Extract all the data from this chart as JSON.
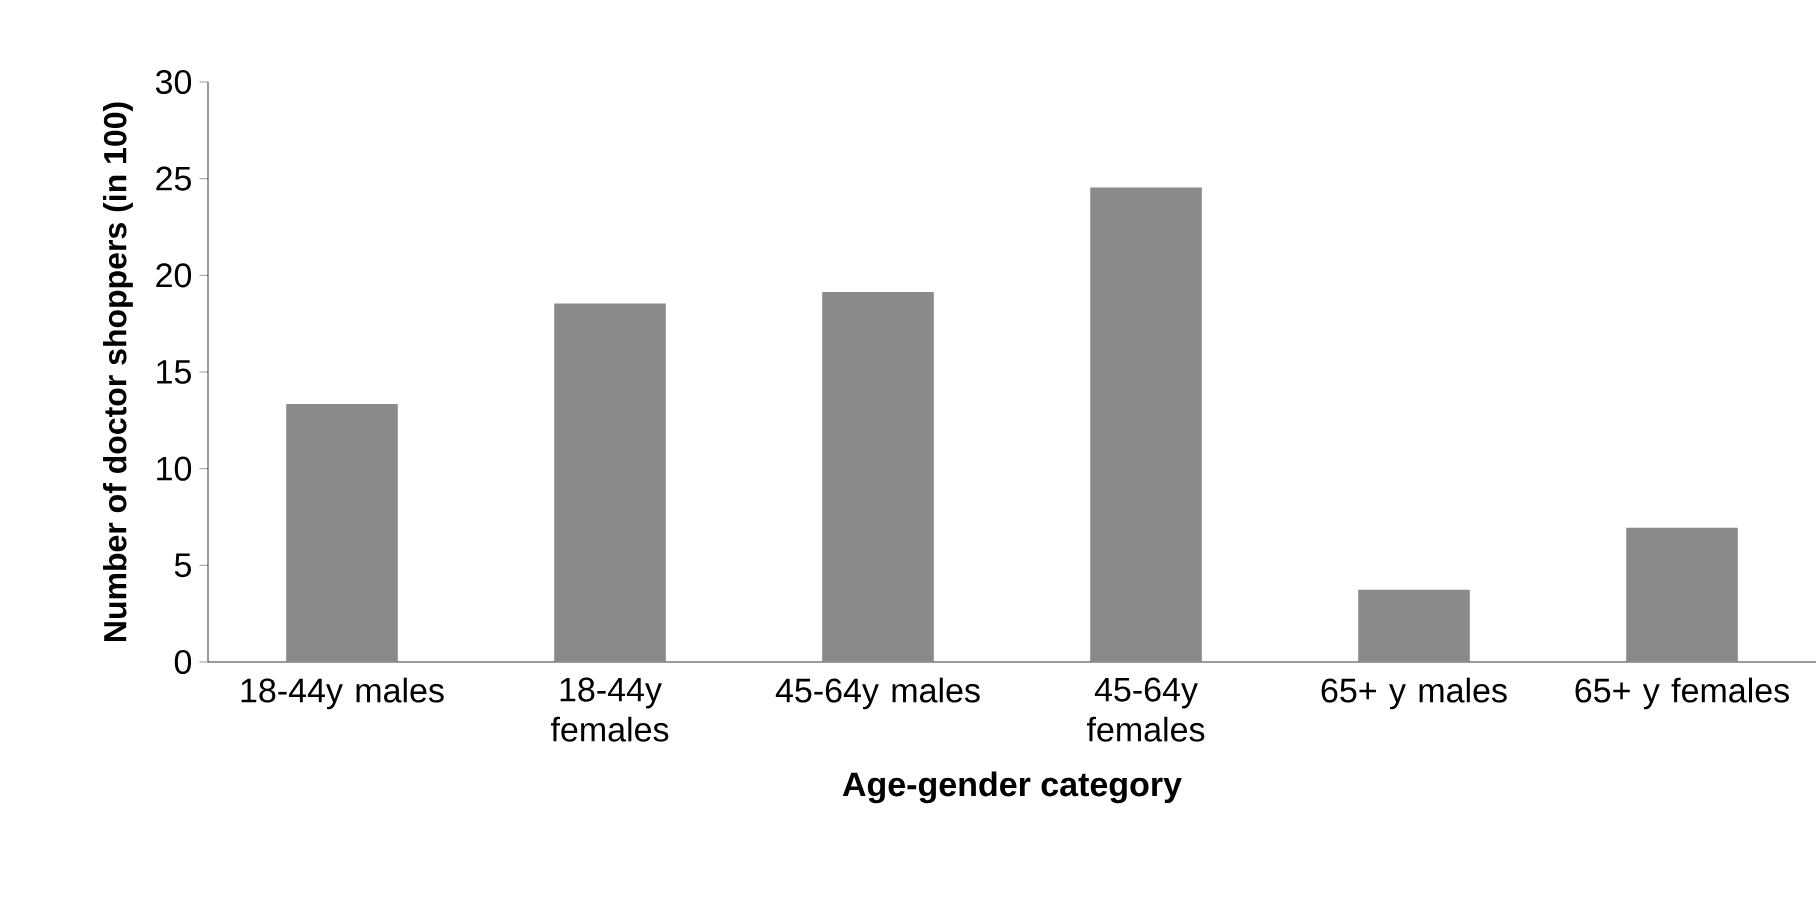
{
  "chart_data": {
    "type": "bar",
    "xlabel": "Age-gender category",
    "ylabel": "Number of doctor shoppers (in 100)",
    "categories": [
      "18-44y males",
      "18-44y females",
      "45-64y males",
      "45-64y females",
      "65+ y males",
      "65+ y females"
    ],
    "values": [
      13.3,
      18.5,
      19.1,
      24.5,
      3.7,
      6.9
    ],
    "color": "#8a8a8a",
    "ylim": [
      0,
      30
    ],
    "yticks": [
      0,
      5,
      10,
      15,
      20,
      25,
      30
    ],
    "grid": false
  }
}
